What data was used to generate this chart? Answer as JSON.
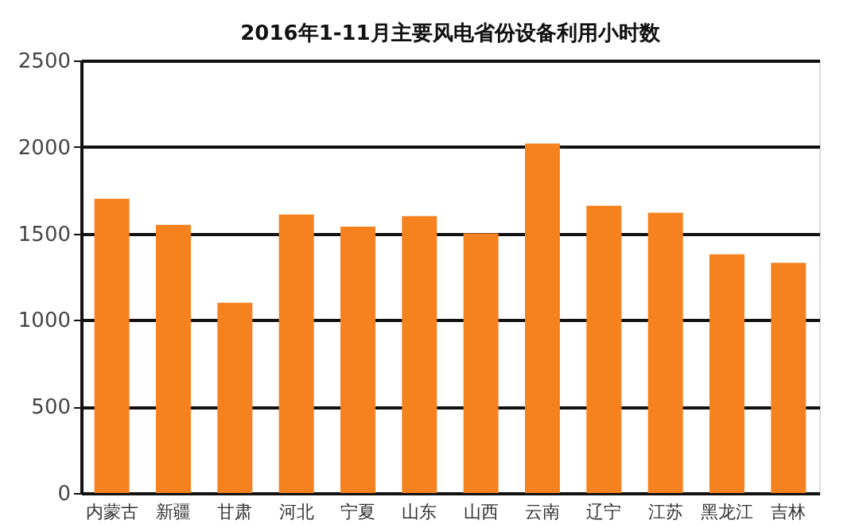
{
  "chart_data": {
    "type": "bar",
    "title": "2016年1-11月主要风电省份设备利用小时数",
    "categories": [
      "内蒙古",
      "新疆",
      "甘肃",
      "河北",
      "宁夏",
      "山东",
      "山西",
      "云南",
      "辽宁",
      "江苏",
      "黑龙江",
      "吉林"
    ],
    "values": [
      1700,
      1550,
      1100,
      1610,
      1540,
      1600,
      1500,
      2020,
      1660,
      1620,
      1380,
      1330
    ],
    "color": "#f5821f",
    "ylim": [
      0,
      2500
    ],
    "yticks": [
      0,
      500,
      1000,
      1500,
      2000,
      2500
    ],
    "grid": "y"
  }
}
